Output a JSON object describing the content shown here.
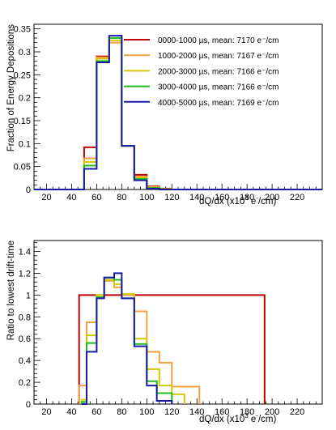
{
  "chart_data": [
    {
      "type": "line",
      "ylabel": "Fraction of Energy Depositions",
      "xlabel": "dQ/dx (x10",
      "xlabel_sup": "3",
      "xlabel_tail": " e",
      "xlabel_sup2": "-",
      "xlabel_end": "/cm)",
      "xlim": [
        10,
        240
      ],
      "ylim": [
        0,
        0.36
      ],
      "xticks": [
        "20",
        "40",
        "60",
        "80",
        "100",
        "120",
        "140",
        "160",
        "180",
        "200",
        "220"
      ],
      "yticks": [
        "0",
        "0.05",
        "0.1",
        "0.15",
        "0.2",
        "0.25",
        "0.3",
        "0.35"
      ],
      "legend_position": "top-right",
      "bin_edges": [
        10,
        20,
        30,
        40,
        50,
        60,
        70,
        80,
        90,
        100,
        110,
        120,
        130,
        140,
        150,
        160,
        170,
        180,
        190,
        200,
        210,
        220,
        230,
        240
      ],
      "series": [
        {
          "name": "0000-1000 µs, mean: 7170 e⁻/cm",
          "color": "#c00000",
          "values": [
            0,
            0,
            0,
            0,
            0.092,
            0.29,
            0.33,
            0.095,
            0.032,
            0.007,
            0.002,
            0,
            0,
            0,
            0,
            0,
            0,
            0,
            0,
            0,
            0,
            0,
            0
          ]
        },
        {
          "name": "1000-2000 µs, mean: 7167 e⁻/cm",
          "color": "#f5a040",
          "values": [
            0,
            0,
            0,
            0,
            0.068,
            0.288,
            0.32,
            0.095,
            0.028,
            0.006,
            0.001,
            0,
            0,
            0,
            0,
            0,
            0,
            0,
            0,
            0,
            0,
            0,
            0
          ]
        },
        {
          "name": "2000-3000 µs, mean: 7166 e⁻/cm",
          "color": "#d4c800",
          "values": [
            0,
            0,
            0,
            0,
            0.06,
            0.285,
            0.325,
            0.095,
            0.026,
            0.004,
            0.001,
            0,
            0,
            0,
            0,
            0,
            0,
            0,
            0,
            0,
            0,
            0,
            0
          ]
        },
        {
          "name": "3000-4000 µs, mean: 7166 e⁻/cm",
          "color": "#22bb22",
          "values": [
            0,
            0,
            0,
            0,
            0.052,
            0.28,
            0.33,
            0.095,
            0.023,
            0.003,
            0.0005,
            0,
            0,
            0,
            0,
            0,
            0,
            0,
            0,
            0,
            0,
            0,
            0
          ]
        },
        {
          "name": "4000-5000 µs, mean: 7169 e⁻/cm",
          "color": "#1a1aa8",
          "values": [
            0,
            0,
            0,
            0,
            0.045,
            0.277,
            0.335,
            0.095,
            0.02,
            0.002,
            0,
            0,
            0,
            0,
            0,
            0,
            0,
            0,
            0,
            0,
            0,
            0,
            0
          ]
        }
      ]
    },
    {
      "type": "line",
      "ylabel": "Ratio to lowest drift-time",
      "xlabel": "dQ/dx (x10",
      "xlabel_sup": "3",
      "xlabel_tail": " e",
      "xlabel_sup2": "-",
      "xlabel_end": "/cm)",
      "xlim": [
        10,
        240
      ],
      "ylim": [
        0,
        1.5
      ],
      "xticks": [
        "20",
        "40",
        "60",
        "80",
        "100",
        "120",
        "140",
        "160",
        "180",
        "200",
        "220"
      ],
      "yticks": [
        "0",
        "0.2",
        "0.4",
        "0.6",
        "0.8",
        "1",
        "1.2",
        "1.4"
      ],
      "series": [
        {
          "color": "#c00000",
          "segments": [
            [
              46,
              0,
              1
            ],
            [
              46,
              194,
              1
            ],
            [
              194,
              1,
              0
            ]
          ]
        },
        {
          "color": "#f5a040",
          "steps": [
            [
              46,
              0.17
            ],
            [
              52,
              0.75
            ],
            [
              60,
              1.0
            ],
            [
              66,
              1.13
            ],
            [
              74,
              1.07
            ],
            [
              80,
              1.0
            ],
            [
              90,
              0.85
            ],
            [
              100,
              0.48
            ],
            [
              110,
              0.38
            ],
            [
              120,
              0.16
            ],
            [
              142,
              0
            ]
          ]
        },
        {
          "color": "#d4c800",
          "steps": [
            [
              48,
              0.04
            ],
            [
              52,
              0.63
            ],
            [
              60,
              1.0
            ],
            [
              66,
              1.14
            ],
            [
              74,
              1.1
            ],
            [
              80,
              1.01
            ],
            [
              90,
              0.6
            ],
            [
              100,
              0.32
            ],
            [
              110,
              0.17
            ],
            [
              120,
              0.09
            ],
            [
              130,
              0.0
            ]
          ]
        },
        {
          "color": "#22bb22",
          "steps": [
            [
              48,
              0.02
            ],
            [
              52,
              0.56
            ],
            [
              60,
              0.98
            ],
            [
              66,
              1.16
            ],
            [
              74,
              1.14
            ],
            [
              80,
              0.97
            ],
            [
              90,
              0.55
            ],
            [
              100,
              0.21
            ],
            [
              108,
              0.1
            ],
            [
              120,
              0
            ]
          ]
        },
        {
          "color": "#1a1aa8",
          "steps": [
            [
              48,
              0.0
            ],
            [
              52,
              0.48
            ],
            [
              60,
              0.97
            ],
            [
              66,
              1.16
            ],
            [
              74,
              1.2
            ],
            [
              80,
              0.97
            ],
            [
              90,
              0.53
            ],
            [
              100,
              0.17
            ],
            [
              108,
              0.03
            ],
            [
              120,
              0
            ]
          ]
        }
      ]
    }
  ]
}
